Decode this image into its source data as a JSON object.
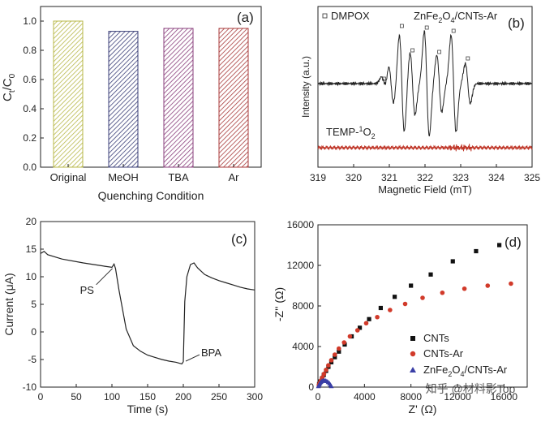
{
  "watermark": "知乎 @材料影Top",
  "chart_data": [
    {
      "panel_label": "(a)",
      "type": "bar",
      "categories": [
        "Original",
        "MeOH",
        "TBA",
        "Ar"
      ],
      "values": [
        1.0,
        0.93,
        0.95,
        0.95
      ],
      "bar_colors": [
        "#b8b84a",
        "#3b3f78",
        "#8a3f7c",
        "#a83a3a"
      ],
      "xlabel": "Quenching Condition",
      "ylabel_main": "C",
      "ylabel_sub1": "t",
      "ylabel_sep": "/C",
      "ylabel_sub2": "0",
      "ylim": [
        0,
        1.1
      ],
      "yticks": [
        "0.0",
        "0.2",
        "0.4",
        "0.6",
        "0.8",
        "1.0"
      ]
    },
    {
      "panel_label": "(b)",
      "type": "line",
      "xlabel": "Magnetic Field (mT)",
      "ylabel": "Intensity (a.u.)",
      "xlim": [
        319,
        325
      ],
      "xticks": [
        "319",
        "320",
        "321",
        "322",
        "323",
        "324",
        "325"
      ],
      "legend_marker": "DMPOX",
      "annotation_pre": "ZnFe",
      "annotation_sub1": "2",
      "annotation_mid": "O",
      "annotation_sub2": "4",
      "annotation_post": "/CNTs-Ar",
      "series2_label_pre": "TEMP-",
      "series2_label_sup": "1",
      "series2_label_post": "O",
      "series2_label_sub": "2",
      "series": [
        {
          "name": "DMPO adducts",
          "color": "#222222",
          "peaks": [
            [
              320.85,
              0.12
            ],
            [
              321.05,
              0.35
            ],
            [
              321.35,
              0.85
            ],
            [
              321.65,
              0.55
            ],
            [
              322.05,
              0.92
            ],
            [
              322.4,
              0.5
            ],
            [
              322.8,
              0.85
            ],
            [
              323.2,
              0.35
            ]
          ]
        },
        {
          "name": "TEMP-1O2",
          "color": "#c0392b"
        }
      ],
      "dmpox_markers": [
        320.85,
        321.35,
        321.65,
        322.05,
        322.4,
        322.8,
        323.2
      ]
    },
    {
      "panel_label": "(c)",
      "type": "line",
      "xlabel": "Time (s)",
      "ylabel": "Current (μA)",
      "xlim": [
        0,
        300
      ],
      "ylim": [
        -10,
        20
      ],
      "xticks": [
        "0",
        "50",
        "100",
        "150",
        "200",
        "250",
        "300"
      ],
      "yticks": [
        "-10",
        "-5",
        "0",
        "5",
        "10",
        "15",
        "20"
      ],
      "series": [
        {
          "name": "current",
          "color": "#222222",
          "x": [
            0,
            5,
            10,
            30,
            60,
            90,
            100,
            103,
            105,
            110,
            120,
            130,
            140,
            150,
            160,
            170,
            180,
            190,
            198,
            200,
            202,
            205,
            210,
            215,
            220,
            230,
            240,
            250,
            260,
            270,
            280,
            290,
            300
          ],
          "y": [
            14.2,
            14.6,
            14.0,
            13.2,
            12.5,
            11.9,
            11.7,
            12.3,
            11.5,
            7.5,
            0.5,
            -2.5,
            -3.5,
            -4.2,
            -4.6,
            -5.0,
            -5.3,
            -5.5,
            -5.8,
            -5.4,
            5.5,
            10.0,
            12.2,
            12.5,
            11.6,
            10.4,
            9.8,
            9.3,
            8.9,
            8.5,
            8.1,
            7.8,
            7.6
          ]
        }
      ],
      "annotations": [
        {
          "text": "PS",
          "x": 103,
          "y": 11.8
        },
        {
          "text": "BPA",
          "x": 200,
          "y": -5.6
        }
      ]
    },
    {
      "panel_label": "(d)",
      "type": "scatter",
      "xlabel": "Z' (Ω)",
      "ylabel": "-Z'' (Ω)",
      "xlim": [
        0,
        18000
      ],
      "ylim": [
        0,
        16000
      ],
      "xticks": [
        "0",
        "4000",
        "8000",
        "12000",
        "16000"
      ],
      "yticks": [
        "0",
        "4000",
        "8000",
        "12000",
        "16000"
      ],
      "series": [
        {
          "name": "CNTs",
          "color": "#111111",
          "marker": "square",
          "x": [
            100,
            200,
            350,
            500,
            700,
            900,
            1150,
            1450,
            1800,
            2300,
            2900,
            3600,
            4400,
            5400,
            6600,
            8000,
            9700,
            11600,
            13600,
            15600
          ],
          "y": [
            300,
            550,
            850,
            1200,
            1600,
            2000,
            2450,
            2950,
            3500,
            4200,
            5000,
            5850,
            6700,
            7800,
            8900,
            10000,
            11100,
            12400,
            13400,
            14000
          ]
        },
        {
          "name": "CNTs-Ar",
          "color": "#d13a2a",
          "marker": "circle",
          "x": [
            80,
            150,
            250,
            380,
            520,
            700,
            900,
            1150,
            1450,
            1800,
            2250,
            2750,
            3400,
            4150,
            5100,
            6200,
            7500,
            9000,
            10700,
            12600,
            14600,
            16600
          ],
          "y": [
            200,
            400,
            650,
            950,
            1300,
            1700,
            2150,
            2650,
            3200,
            3800,
            4400,
            5000,
            5600,
            6300,
            6900,
            7600,
            8200,
            8800,
            9300,
            9700,
            10000,
            10200
          ]
        },
        {
          "name": "ZnFe2O4/CNTs-Ar",
          "color": "#3a3fa6",
          "marker": "triangle",
          "x": [
            40,
            80,
            130,
            190,
            260,
            340,
            430,
            530,
            640,
            760,
            880,
            990,
            1080,
            1150
          ],
          "y": [
            100,
            200,
            310,
            420,
            520,
            600,
            650,
            670,
            650,
            600,
            500,
            380,
            230,
            100
          ]
        }
      ],
      "legend_items": [
        {
          "pre": "CNTs",
          "sub1": "",
          "mid": "",
          "sub2": "",
          "post": ""
        },
        {
          "pre": "CNTs-Ar",
          "sub1": "",
          "mid": "",
          "sub2": "",
          "post": ""
        },
        {
          "pre": "ZnFe",
          "sub1": "2",
          "mid": "O",
          "sub2": "4",
          "post": "/CNTs-Ar"
        }
      ]
    }
  ]
}
